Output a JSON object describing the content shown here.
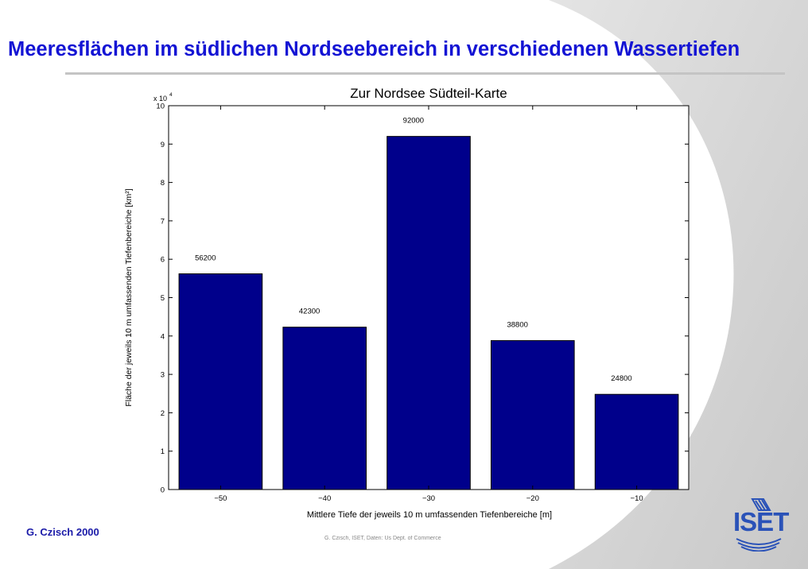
{
  "slide": {
    "title": "Meeresflächen im südlichen Nordseebereich in verschiedenen Wassertiefen",
    "author": "G. Czisch 2000",
    "source": "G. Czisch, ISET, Daten: Us Dept. of Commerce",
    "logo_text": "ISET"
  },
  "colors": {
    "title": "#1414d4",
    "bar": "#00008b",
    "author": "#1a1aa8",
    "logo": "#2a52b8"
  },
  "chart_data": {
    "type": "bar",
    "title": "Zur Nordsee Südteil-Karte",
    "xlabel": "Mittlere Tiefe der jeweils 10 m umfassenden Tiefenbereiche [m]",
    "ylabel": "Fläche der jeweils 10 m umfassenden Tiefenbereiche [km²]",
    "y_multiplier": "x 10",
    "y_multiplier_exp": "4",
    "categories": [
      "−50",
      "−40",
      "−30",
      "−20",
      "−10"
    ],
    "x": [
      -50,
      -40,
      -30,
      -20,
      -10
    ],
    "values": [
      56200,
      42300,
      92000,
      38800,
      24800
    ],
    "labels": [
      "56200",
      "42300",
      "92000",
      "38800",
      "24800"
    ],
    "ylim": [
      0,
      100000
    ],
    "yticks": [
      "0",
      "1",
      "2",
      "3",
      "4",
      "5",
      "6",
      "7",
      "8",
      "9",
      "10"
    ],
    "grid": false,
    "legend": "none"
  }
}
